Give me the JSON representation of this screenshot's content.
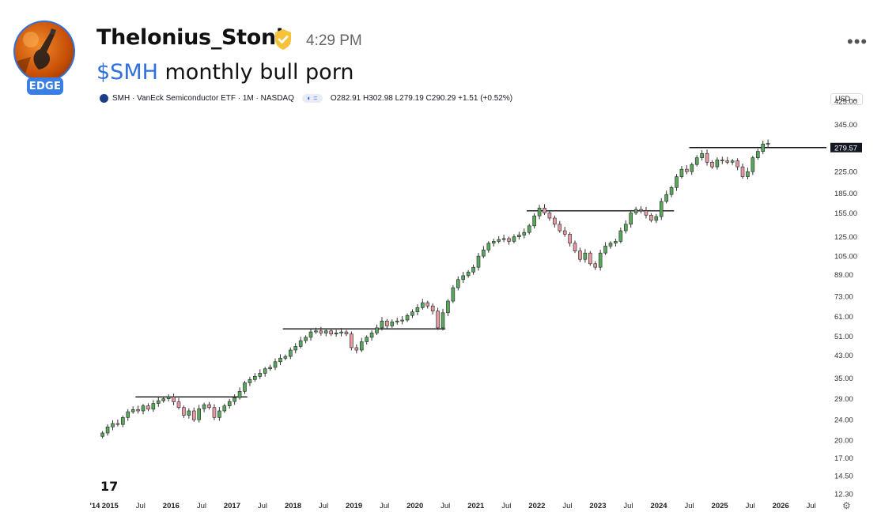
{
  "post": {
    "username": "Thelonius_Stonk",
    "time": "4:29 PM",
    "badge": "EDGE",
    "ticker": "$SMH",
    "text_rest": " monthly bull porn",
    "more": "•••"
  },
  "colors": {
    "up": "#5aa85e",
    "down": "#e59aa2",
    "wick": "#333333",
    "level": "#111111",
    "ticker_link": "#2f6fe0",
    "verified": "#f5c23a"
  },
  "chart_data": {
    "type": "candlestick",
    "title": "SMH · VanEck Semiconductor ETF · 1M · NASDAQ",
    "ohlc_text": "O282.91 H302.98 L279.19 C290.29 +1.51 (+0.52%)",
    "currency": "USD",
    "scale": "log",
    "ylim": [
      12.3,
      425
    ],
    "y_ticks": [
      425.0,
      345.0,
      279.57,
      225.0,
      185.0,
      155.0,
      125.0,
      105.0,
      89.0,
      73.0,
      61.0,
      51.0,
      43.0,
      35.0,
      29.0,
      24.0,
      20.0,
      17.0,
      14.5,
      12.3
    ],
    "y_tick_labels": [
      "425.00",
      "345.00",
      "279.57",
      "225.00",
      "185.00",
      "155.00",
      "125.00",
      "105.00",
      "89.00",
      "73.00",
      "61.00",
      "51.00",
      "43.00",
      "35.00",
      "29.00",
      "24.00",
      "20.00",
      "17.00",
      "14.50",
      "12.30"
    ],
    "highlight_price": 279.57,
    "x_ticks": [
      "2014-10",
      "2015-01",
      "2015-07",
      "2016-01",
      "2016-07",
      "2017-01",
      "2017-07",
      "2018-01",
      "2018-07",
      "2019-01",
      "2019-07",
      "2020-01",
      "2020-07",
      "2021-01",
      "2021-07",
      "2022-01",
      "2022-07",
      "2023-01",
      "2023-07",
      "2024-01",
      "2024-07",
      "2025-01",
      "2025-07",
      "2026-01",
      "2026-07"
    ],
    "x_tick_labels": [
      "'14",
      "2015",
      "Jul",
      "2016",
      "Jul",
      "2017",
      "Jul",
      "2018",
      "Jul",
      "2019",
      "Jul",
      "2020",
      "Jul",
      "2021",
      "Jul",
      "2022",
      "Jul",
      "2023",
      "Jul",
      "2024",
      "Jul",
      "2025",
      "Jul",
      "2026",
      "Jul"
    ],
    "xlim": [
      "2014-10",
      "2026-10"
    ],
    "closes": [
      21.3,
      22.5,
      23.2,
      23.0,
      24.5,
      25.8,
      26.3,
      26.0,
      27.2,
      26.4,
      27.8,
      28.5,
      29.0,
      29.5,
      28.2,
      26.8,
      25.0,
      26.0,
      24.0,
      26.5,
      27.5,
      26.8,
      24.5,
      26.0,
      27.2,
      28.3,
      29.3,
      31.0,
      33.5,
      34.5,
      35.5,
      36.5,
      38.0,
      38.5,
      40.5,
      41.8,
      42.5,
      45.0,
      46.5,
      49.0,
      50.5,
      53.0,
      53.5,
      52.5,
      53.5,
      52.0,
      52.5,
      53.0,
      52.0,
      46.0,
      45.0,
      48.5,
      50.5,
      52.5,
      55.0,
      58.5,
      56.0,
      58.0,
      58.5,
      59.0,
      61.5,
      63.5,
      66.0,
      69.0,
      67.0,
      64.0,
      55.0,
      63.0,
      70.0,
      79.0,
      85.0,
      88.0,
      91.0,
      95.0,
      105.0,
      111.0,
      118.0,
      120.0,
      122.0,
      123.0,
      120.0,
      125.0,
      127.0,
      130.0,
      138.0,
      151.0,
      162.0,
      155.0,
      148.0,
      140.0,
      132.0,
      128.0,
      118.0,
      110.0,
      102.0,
      108.0,
      98.0,
      95.0,
      108.0,
      115.0,
      118.0,
      120.0,
      132.0,
      140.0,
      155.0,
      160.0,
      158.0,
      152.0,
      145.0,
      150.0,
      172.0,
      183.0,
      195.0,
      215.0,
      230.0,
      225.0,
      240.0,
      255.0,
      265.0,
      245.0,
      235.0,
      250.0,
      248.0,
      245.0,
      248.0,
      235.0,
      215.0,
      225.0,
      255.0,
      270.0,
      288.79,
      290.29
    ],
    "levels": [
      {
        "price": 29.5,
        "from": "2015-06",
        "to": "2017-04"
      },
      {
        "price": 54.5,
        "from": "2017-11",
        "to": "2020-07"
      },
      {
        "price": 158.0,
        "from": "2021-11",
        "to": "2024-04"
      },
      {
        "price": 279.57,
        "from": "2024-07",
        "to": "2026-10"
      }
    ]
  }
}
